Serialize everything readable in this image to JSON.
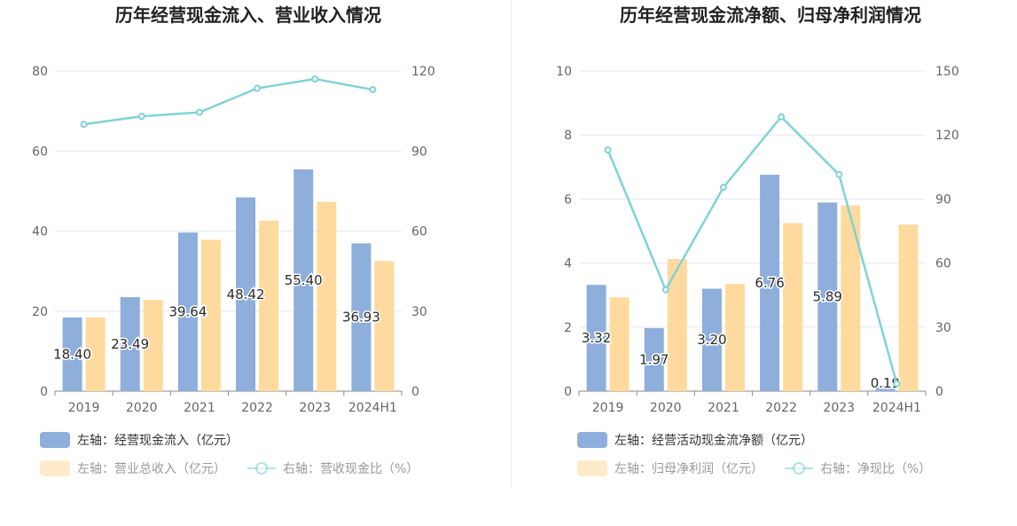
{
  "colors": {
    "bar_primary": "#8eaedc",
    "bar_secondary": "#ffda9e",
    "line": "#7fd3d6",
    "grid": "#e3e8f3",
    "axis": "#888888"
  },
  "chart_data": [
    {
      "type": "bar",
      "title": "历年经营现金流入、营业收入情况",
      "categories": [
        "2019",
        "2020",
        "2021",
        "2022",
        "2023",
        "2024H1"
      ],
      "left_axis": {
        "ylim": [
          0,
          80
        ],
        "ticks": [
          "0",
          "20",
          "40",
          "60",
          "80"
        ]
      },
      "right_axis": {
        "ylim": [
          0,
          120
        ],
        "ticks": [
          "0",
          "30",
          "60",
          "90",
          "120"
        ]
      },
      "series": [
        {
          "name": "左轴：经营现金流入（亿元）",
          "axis": "left",
          "kind": "bar",
          "color": "#8eaedc",
          "values": [
            18.4,
            23.49,
            39.64,
            48.42,
            55.4,
            36.93
          ],
          "labels": [
            "18.40",
            "23.49",
            "39.64",
            "48.42",
            "55.40",
            "36.93"
          ]
        },
        {
          "name": "左轴：营业总收入（亿元）",
          "axis": "left",
          "kind": "bar",
          "color": "#ffda9e",
          "values": [
            18.4,
            22.8,
            37.8,
            42.6,
            47.3,
            32.5
          ]
        },
        {
          "name": "右轴：营收现金比（%）",
          "axis": "right",
          "kind": "line",
          "color": "#7fd3d6",
          "values": [
            100.0,
            103.0,
            104.5,
            113.5,
            117.0,
            113.0
          ]
        }
      ],
      "legend_placement": "bottom-left",
      "grid": true
    },
    {
      "type": "bar",
      "title": "历年经营现金流净额、归母净利润情况",
      "categories": [
        "2019",
        "2020",
        "2021",
        "2022",
        "2023",
        "2024H1"
      ],
      "left_axis": {
        "ylim": [
          0,
          10
        ],
        "ticks": [
          "0",
          "2",
          "4",
          "6",
          "8",
          "10"
        ]
      },
      "right_axis": {
        "ylim": [
          0,
          150
        ],
        "ticks": [
          "0",
          "30",
          "60",
          "90",
          "120",
          "150"
        ]
      },
      "series": [
        {
          "name": "左轴：经营活动现金流净额（亿元）",
          "axis": "left",
          "kind": "bar",
          "color": "#8eaedc",
          "values": [
            3.32,
            1.97,
            3.2,
            6.76,
            5.89,
            0.19
          ],
          "labels": [
            "3.32",
            "1.97",
            "3.20",
            "6.76",
            "5.89",
            "0.19"
          ]
        },
        {
          "name": "左轴：归母净利润（亿元）",
          "axis": "left",
          "kind": "bar",
          "color": "#ffda9e",
          "values": [
            2.93,
            4.13,
            3.35,
            5.25,
            5.8,
            5.2
          ]
        },
        {
          "name": "右轴：净现比（%）",
          "axis": "right",
          "kind": "line",
          "color": "#7fd3d6",
          "values": [
            113.0,
            47.5,
            95.5,
            128.5,
            101.5,
            3.5
          ]
        }
      ],
      "legend_placement": "bottom-left",
      "grid": true
    }
  ]
}
